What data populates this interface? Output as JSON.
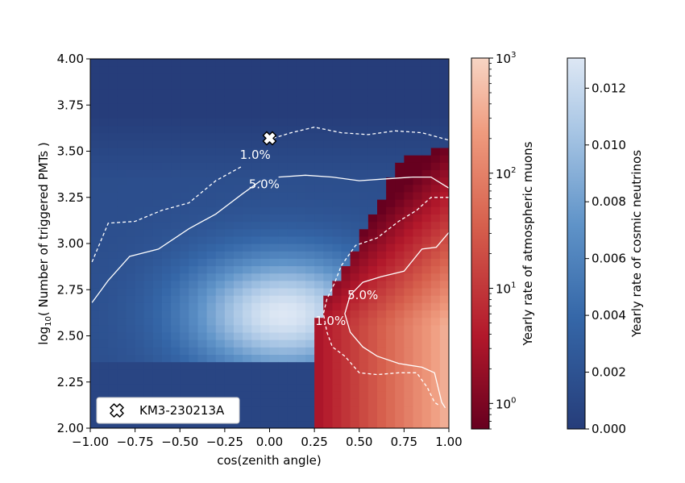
{
  "chart_data": {
    "type": "heatmap",
    "xlabel": "cos(zenith angle)",
    "ylabel_prefix": "log",
    "ylabel_sub": "10",
    "ylabel_suffix": "( Number of triggered PMTs )",
    "xlim": [
      -1.0,
      1.0
    ],
    "ylim": [
      2.0,
      4.0
    ],
    "x_ticks": [
      {
        "value": -1.0,
        "label": "−1.00"
      },
      {
        "value": -0.75,
        "label": "−0.75"
      },
      {
        "value": -0.5,
        "label": "−0.50"
      },
      {
        "value": -0.25,
        "label": "−0.25"
      },
      {
        "value": 0.0,
        "label": "0.00"
      },
      {
        "value": 0.25,
        "label": "0.25"
      },
      {
        "value": 0.5,
        "label": "0.50"
      },
      {
        "value": 0.75,
        "label": "0.75"
      },
      {
        "value": 1.0,
        "label": "1.00"
      }
    ],
    "y_ticks": [
      {
        "value": 2.0,
        "label": "2.00"
      },
      {
        "value": 2.25,
        "label": "2.25"
      },
      {
        "value": 2.5,
        "label": "2.50"
      },
      {
        "value": 2.75,
        "label": "2.75"
      },
      {
        "value": 3.0,
        "label": "3.00"
      },
      {
        "value": 3.25,
        "label": "3.25"
      },
      {
        "value": 3.5,
        "label": "3.50"
      },
      {
        "value": 3.75,
        "label": "3.75"
      },
      {
        "value": 4.0,
        "label": "4.00"
      }
    ],
    "event": {
      "name": "KM3-230213A",
      "x": 0.0,
      "y": 3.57,
      "marker": "X"
    },
    "series": [
      {
        "name": "atmospheric muons",
        "colormap": "Reds (log)",
        "color_range": [
          0.6,
          1000
        ]
      },
      {
        "name": "cosmic neutrinos",
        "colormap": "Blues",
        "color_range": [
          0.0,
          0.013
        ]
      }
    ],
    "contours": [
      {
        "label": "1.0%",
        "style": "dashed",
        "kind": "cosmic neutrinos",
        "points": [
          [
            -0.99,
            2.9
          ],
          [
            -0.9,
            3.11
          ],
          [
            -0.75,
            3.12
          ],
          [
            -0.6,
            3.18
          ],
          [
            -0.45,
            3.22
          ],
          [
            -0.3,
            3.34
          ],
          [
            -0.15,
            3.42
          ]
        ],
        "label_at": [
          -0.08,
          3.48
        ]
      },
      {
        "label": "1.0%",
        "style": "dashed",
        "kind": "cosmic neutrinos",
        "points": [
          [
            0.02,
            3.57
          ],
          [
            0.12,
            3.6
          ],
          [
            0.25,
            3.63
          ],
          [
            0.4,
            3.6
          ],
          [
            0.55,
            3.59
          ],
          [
            0.7,
            3.61
          ],
          [
            0.85,
            3.6
          ],
          [
            1.0,
            3.56
          ]
        ]
      },
      {
        "label": "5.0%",
        "style": "solid",
        "kind": "cosmic neutrinos",
        "points": [
          [
            -0.99,
            2.68
          ],
          [
            -0.9,
            2.8
          ],
          [
            -0.78,
            2.93
          ],
          [
            -0.62,
            2.97
          ],
          [
            -0.45,
            3.08
          ],
          [
            -0.3,
            3.16
          ],
          [
            -0.15,
            3.27
          ],
          [
            -0.05,
            3.34
          ]
        ],
        "label_at": [
          -0.03,
          3.32
        ]
      },
      {
        "label": "5.0%",
        "style": "solid",
        "kind": "cosmic neutrinos",
        "points": [
          [
            0.05,
            3.36
          ],
          [
            0.2,
            3.37
          ],
          [
            0.35,
            3.36
          ],
          [
            0.5,
            3.34
          ],
          [
            0.65,
            3.35
          ],
          [
            0.8,
            3.36
          ],
          [
            0.9,
            3.36
          ],
          [
            1.0,
            3.3
          ]
        ]
      },
      {
        "label": "1.0%",
        "style": "dashed",
        "kind": "atmospheric muons",
        "points": [
          [
            1.0,
            3.25
          ],
          [
            0.9,
            3.25
          ],
          [
            0.82,
            3.18
          ],
          [
            0.72,
            3.12
          ],
          [
            0.6,
            3.03
          ],
          [
            0.48,
            2.99
          ],
          [
            0.4,
            2.88
          ],
          [
            0.36,
            2.78
          ],
          [
            0.32,
            2.7
          ],
          [
            0.3,
            2.62
          ],
          [
            0.32,
            2.52
          ],
          [
            0.35,
            2.44
          ],
          [
            0.42,
            2.39
          ],
          [
            0.5,
            2.3
          ],
          [
            0.6,
            2.29
          ],
          [
            0.72,
            2.3
          ],
          [
            0.82,
            2.3
          ],
          [
            0.88,
            2.22
          ],
          [
            0.92,
            2.14
          ],
          [
            0.95,
            2.12
          ]
        ],
        "label_at": [
          0.34,
          2.58
        ]
      },
      {
        "label": "5.0%",
        "style": "solid",
        "kind": "atmospheric muons",
        "points": [
          [
            1.0,
            3.06
          ],
          [
            0.93,
            2.98
          ],
          [
            0.85,
            2.97
          ],
          [
            0.75,
            2.85
          ],
          [
            0.62,
            2.82
          ],
          [
            0.52,
            2.79
          ],
          [
            0.45,
            2.72
          ],
          [
            0.42,
            2.62
          ],
          [
            0.45,
            2.52
          ],
          [
            0.52,
            2.44
          ],
          [
            0.6,
            2.39
          ],
          [
            0.72,
            2.35
          ],
          [
            0.85,
            2.33
          ],
          [
            0.92,
            2.3
          ],
          [
            0.96,
            2.14
          ],
          [
            0.98,
            2.11
          ]
        ],
        "label_at": [
          0.52,
          2.72
        ]
      }
    ]
  },
  "colorbar_muons": {
    "label": "Yearly rate of atmospheric muons",
    "ticks": [
      {
        "exp": 0,
        "base": "10",
        "power": "0"
      },
      {
        "exp": 1,
        "base": "10",
        "power": "1"
      },
      {
        "exp": 2,
        "base": "10",
        "power": "2"
      },
      {
        "exp": 3,
        "base": "10",
        "power": "3"
      }
    ]
  },
  "colorbar_neutrinos": {
    "label": "Yearly rate of cosmic neutrinos",
    "ticks": [
      {
        "value": 0.0,
        "label": "0.000"
      },
      {
        "value": 0.002,
        "label": "0.002"
      },
      {
        "value": 0.004,
        "label": "0.004"
      },
      {
        "value": 0.006,
        "label": "0.006"
      },
      {
        "value": 0.008,
        "label": "0.008"
      },
      {
        "value": 0.01,
        "label": "0.010"
      },
      {
        "value": 0.012,
        "label": "0.012"
      }
    ]
  },
  "legend": {
    "label": "KM3-230213A",
    "icon": "x-marker-icon"
  },
  "colors": {
    "neutrino_low": "#2a4580",
    "neutrino_high": "#dbe5f3",
    "muon_low": "#6e0a1e",
    "muon_mid": "#d1392f",
    "muon_high": "#f2c3ad",
    "contour": "#ffffff"
  }
}
